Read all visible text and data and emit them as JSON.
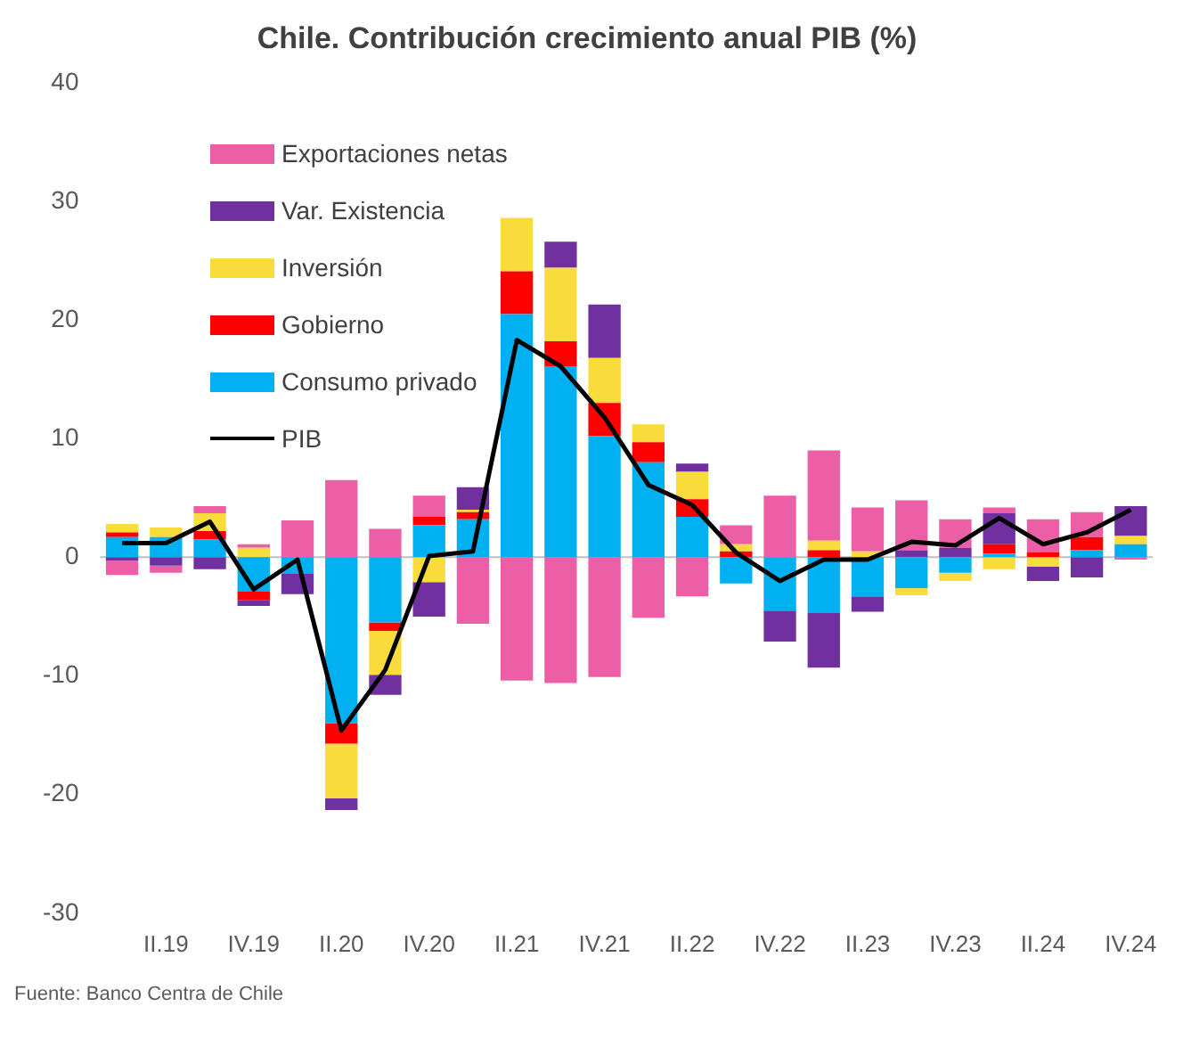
{
  "chart_data": {
    "type": "bar",
    "stacked": true,
    "title": "Chile. Contribución crecimiento anual PIB (%)",
    "categories": [
      null,
      "II.19",
      null,
      "IV.19",
      null,
      "II.20",
      null,
      "IV.20",
      null,
      "II.21",
      null,
      "IV.21",
      null,
      "II.22",
      null,
      "IV.22",
      null,
      "II.23",
      null,
      "IV.23",
      null,
      "II.24",
      null,
      "IV.24"
    ],
    "series": [
      {
        "name": "Consumo privado",
        "color": "#00b0f0",
        "values": [
          1.7,
          1.7,
          1.5,
          -2.9,
          -1.4,
          -14,
          -5.5,
          2.7,
          3.2,
          20.5,
          16.1,
          10.2,
          8.0,
          3.4,
          -2.2,
          -4.5,
          -4.7,
          -3.3,
          -2.6,
          -1.3,
          0.3,
          0,
          0.6,
          1.1
        ]
      },
      {
        "name": "Gobierno",
        "color": "#ff0000",
        "values": [
          0.4,
          0,
          0.7,
          -0.7,
          0,
          -1.7,
          -0.7,
          0.7,
          0.6,
          3.6,
          2.1,
          2.8,
          1.7,
          1.5,
          0.5,
          0,
          0.6,
          0,
          0,
          0,
          0.8,
          0.4,
          1.1,
          0
        ]
      },
      {
        "name": "Inversión",
        "color": "#f9dc3c",
        "values": [
          0.7,
          0.8,
          1.5,
          0.8,
          0,
          -4.6,
          -3.7,
          -2.1,
          0.2,
          4.5,
          6.2,
          3.8,
          1.5,
          2.3,
          0.6,
          0,
          0.8,
          0.5,
          -0.6,
          -0.7,
          -1.0,
          -0.8,
          0,
          0.7
        ]
      },
      {
        "name": "Var. Existencia",
        "color": "#7030a0",
        "values": [
          -0.3,
          -0.7,
          -1.0,
          -0.5,
          -1.7,
          -1.0,
          -1.7,
          -2.9,
          1.9,
          0,
          2.2,
          4.5,
          0,
          0.7,
          0,
          -2.6,
          -4.6,
          -1.3,
          0.6,
          0.8,
          2.6,
          -1.2,
          -1.7,
          2.5
        ]
      },
      {
        "name": "Exportaciones netas",
        "color": "#ec5fa7",
        "values": [
          -1.2,
          -0.6,
          0.6,
          0.3,
          3.1,
          6.5,
          2.4,
          1.8,
          -5.6,
          -10.4,
          -10.6,
          -10.1,
          -5.1,
          -3.3,
          1.6,
          5.2,
          7.6,
          3.7,
          4.2,
          2.4,
          0.5,
          2.8,
          2.1,
          -0.2
        ]
      },
      {
        "name": "PIB",
        "type": "line",
        "color": "#000000",
        "values": [
          1.2,
          1.2,
          3.0,
          -2.7,
          -0.2,
          -14.6,
          -9.5,
          0.1,
          0.5,
          18.3,
          16.1,
          11.8,
          6.1,
          4.4,
          0.4,
          -2.0,
          -0.2,
          -0.2,
          1.3,
          1.0,
          3.3,
          1.1,
          2.1,
          4.0
        ]
      }
    ],
    "ylim": [
      -30,
      40
    ],
    "yticks": [
      -30,
      -20,
      -10,
      0,
      10,
      20,
      30,
      40
    ],
    "grid": false,
    "legend": "top left",
    "marker": "none",
    "ref_lines": [
      {
        "axis": "y",
        "value": 0,
        "color": "#bfbfbf"
      }
    ],
    "annotations": [
      "Fuente: Banco Centra de Chile"
    ]
  }
}
